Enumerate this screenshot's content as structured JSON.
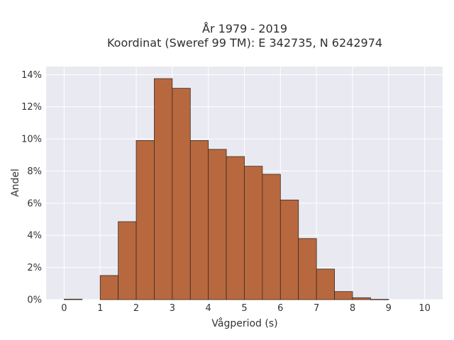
{
  "chart_data": {
    "type": "bar",
    "title_lines": [
      "År 1979 - 2019",
      "Koordinat (Sweref 99 TM): E 342735, N 6242974"
    ],
    "xlabel": "Vågperiod (s)",
    "ylabel": "Andel",
    "xlim": [
      -0.5,
      10.5
    ],
    "ylim": [
      0,
      14.5
    ],
    "x_ticks": [
      0,
      1,
      2,
      3,
      4,
      5,
      6,
      7,
      8,
      9,
      10
    ],
    "x_tick_labels": [
      "0",
      "1",
      "2",
      "3",
      "4",
      "5",
      "6",
      "7",
      "8",
      "9",
      "10"
    ],
    "y_ticks": [
      0,
      2,
      4,
      6,
      8,
      10,
      12,
      14
    ],
    "y_tick_labels": [
      "0%",
      "2%",
      "4%",
      "6%",
      "8%",
      "10%",
      "12%",
      "14%"
    ],
    "bin_width": 0.5,
    "bins": [
      {
        "start": 0.0,
        "value": 0.03
      },
      {
        "start": 0.5,
        "value": 0
      },
      {
        "start": 1.0,
        "value": 1.5
      },
      {
        "start": 1.5,
        "value": 4.85
      },
      {
        "start": 2.0,
        "value": 9.9
      },
      {
        "start": 2.5,
        "value": 13.75
      },
      {
        "start": 3.0,
        "value": 13.15
      },
      {
        "start": 3.5,
        "value": 9.9
      },
      {
        "start": 4.0,
        "value": 9.35
      },
      {
        "start": 4.5,
        "value": 8.9
      },
      {
        "start": 5.0,
        "value": 8.3
      },
      {
        "start": 5.5,
        "value": 7.8
      },
      {
        "start": 6.0,
        "value": 6.2
      },
      {
        "start": 6.5,
        "value": 3.8
      },
      {
        "start": 7.0,
        "value": 1.9
      },
      {
        "start": 7.5,
        "value": 0.5
      },
      {
        "start": 8.0,
        "value": 0.12
      },
      {
        "start": 8.5,
        "value": 0.02
      }
    ],
    "grid": true,
    "colors": {
      "bar_fill": "#b8683f",
      "bar_stroke": "#3a2a20",
      "plot_bg": "#e9e9f1",
      "grid": "#ffffff"
    }
  }
}
